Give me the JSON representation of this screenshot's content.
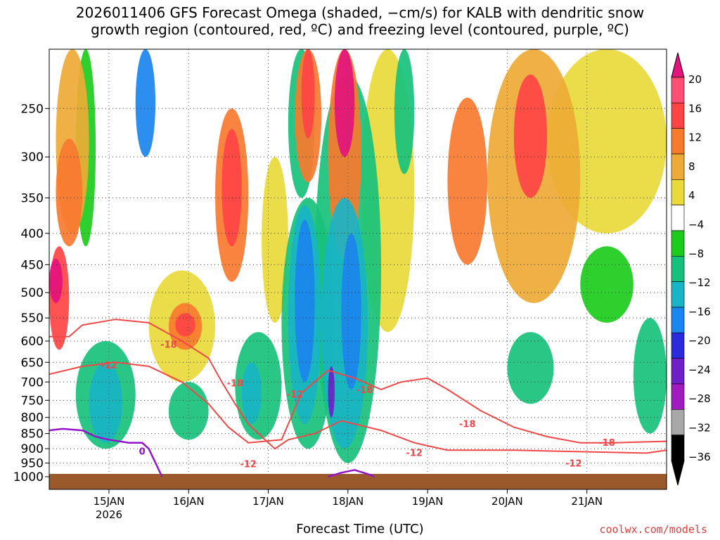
{
  "title_line1": "2026011406 GFS Forecast Omega (shaded, −cm/s) for KALB with dendritic snow",
  "title_line2": "growth region (contoured, red, ºC) and freezing level (contoured, purple, ºC)",
  "credit": "coolwx.com/models",
  "chart_data": {
    "type": "heatmap",
    "title": "2026011406 GFS Forecast Omega (shaded, −cm/s) for KALB with dendritic snow growth region (contoured, red, ºC) and freezing level (contoured, purple, ºC)",
    "xlabel": "Forecast Time (UTC)",
    "ylabel": "",
    "x_range_hours": [
      0,
      186
    ],
    "y_range_hPa": [
      1000,
      200
    ],
    "y_ticks": [
      250,
      300,
      350,
      400,
      450,
      500,
      550,
      600,
      650,
      700,
      750,
      800,
      850,
      900,
      950,
      1000
    ],
    "x_ticks": [
      {
        "hour": 18,
        "label": "15JAN",
        "sub": "2026"
      },
      {
        "hour": 42,
        "label": "16JAN",
        "sub": ""
      },
      {
        "hour": 66,
        "label": "17JAN",
        "sub": ""
      },
      {
        "hour": 90,
        "label": "18JAN",
        "sub": ""
      },
      {
        "hour": 114,
        "label": "19JAN",
        "sub": ""
      },
      {
        "hour": 138,
        "label": "20JAN",
        "sub": ""
      },
      {
        "hour": 162,
        "label": "21JAN",
        "sub": ""
      }
    ],
    "colorbar": {
      "labels": [
        "20",
        "16",
        "12",
        "8",
        "4",
        "−4",
        "−8",
        "−12",
        "−16",
        "−20",
        "−24",
        "−28",
        "−32",
        "−36"
      ],
      "colors": [
        "#ff4f73",
        "#ff4444",
        "#f77a2f",
        "#eeaa36",
        "#e9d93a",
        "#ffffff",
        "#1bcc1b",
        "#17c17c",
        "#19b4c6",
        "#1a86ee",
        "#2b2bdd",
        "#6e1fc7",
        "#a01bc0",
        "#a8a8a8",
        "#000000"
      ],
      "top_color": "#e3147e",
      "bottom_color": "#000000"
    },
    "omega_cells": [
      {
        "name": "early-low-warm",
        "t": [
          0,
          6
        ],
        "p": [
          420,
          620
        ],
        "v": 16
      },
      {
        "name": "early-core",
        "t": [
          0,
          4
        ],
        "p": [
          440,
          520
        ],
        "v": 20
      },
      {
        "name": "early-upper",
        "t": [
          2,
          12
        ],
        "p": [
          200,
          400
        ],
        "v": 8
      },
      {
        "name": "green-strip-a",
        "t": [
          8,
          14
        ],
        "p": [
          200,
          420
        ],
        "v": -6
      },
      {
        "name": "orange-15jan",
        "t": [
          2,
          10
        ],
        "p": [
          280,
          420
        ],
        "v": 12
      },
      {
        "name": "blue-15jan-upper",
        "t": [
          26,
          32
        ],
        "p": [
          200,
          300
        ],
        "v": -16
      },
      {
        "name": "cyan-15jan-low",
        "t": [
          12,
          22
        ],
        "p": [
          650,
          880
        ],
        "v": -12
      },
      {
        "name": "green-15jan-low",
        "t": [
          8,
          26
        ],
        "p": [
          600,
          900
        ],
        "v": -8
      },
      {
        "name": "orange-16jan",
        "t": [
          36,
          46
        ],
        "p": [
          520,
          620
        ],
        "v": 12
      },
      {
        "name": "red-16jan",
        "t": [
          38,
          44
        ],
        "p": [
          540,
          590
        ],
        "v": 18
      },
      {
        "name": "yellow-16jan",
        "t": [
          30,
          50
        ],
        "p": [
          460,
          700
        ],
        "v": 5
      },
      {
        "name": "green-16jan-low",
        "t": [
          36,
          48
        ],
        "p": [
          700,
          870
        ],
        "v": -8
      },
      {
        "name": "orange-16jan-upper",
        "t": [
          50,
          60
        ],
        "p": [
          250,
          480
        ],
        "v": 12
      },
      {
        "name": "red-16jan-upper",
        "t": [
          52,
          58
        ],
        "p": [
          270,
          420
        ],
        "v": 18
      },
      {
        "name": "green-16jan-mid",
        "t": [
          56,
          70
        ],
        "p": [
          580,
          870
        ],
        "v": -8
      },
      {
        "name": "cyan-16jan-mid",
        "t": [
          58,
          64
        ],
        "p": [
          650,
          820
        ],
        "v": -12
      },
      {
        "name": "yellow-17jan",
        "t": [
          64,
          72
        ],
        "p": [
          300,
          560
        ],
        "v": 5
      },
      {
        "name": "green-17jan-upper",
        "t": [
          72,
          80
        ],
        "p": [
          200,
          350
        ],
        "v": -8
      },
      {
        "name": "orange-17jan-upper",
        "t": [
          74,
          82
        ],
        "p": [
          200,
          330
        ],
        "v": 12
      },
      {
        "name": "red-17jan-upper",
        "t": [
          76,
          80
        ],
        "p": [
          200,
          280
        ],
        "v": 18
      },
      {
        "name": "blue-17jan-a",
        "t": [
          74,
          80
        ],
        "p": [
          380,
          700
        ],
        "v": -18
      },
      {
        "name": "cyan-17jan-a",
        "t": [
          72,
          82
        ],
        "p": [
          360,
          820
        ],
        "v": -12
      },
      {
        "name": "green-17jan-a",
        "t": [
          70,
          86
        ],
        "p": [
          350,
          900
        ],
        "v": -8
      },
      {
        "name": "magenta-17jan",
        "t": [
          86,
          92
        ],
        "p": [
          200,
          300
        ],
        "v": 20
      },
      {
        "name": "orange-17jan-b",
        "t": [
          84,
          94
        ],
        "p": [
          200,
          440
        ],
        "v": 12
      },
      {
        "name": "blue-18jan",
        "t": [
          88,
          94
        ],
        "p": [
          400,
          720
        ],
        "v": -18
      },
      {
        "name": "purple-18jan",
        "t": [
          84,
          86
        ],
        "p": [
          660,
          800
        ],
        "v": -26
      },
      {
        "name": "cyan-18jan",
        "t": [
          82,
          96
        ],
        "p": [
          350,
          900
        ],
        "v": -12
      },
      {
        "name": "green-18jan",
        "t": [
          80,
          100
        ],
        "p": [
          220,
          950
        ],
        "v": -8
      },
      {
        "name": "yellow-18jan",
        "t": [
          94,
          110
        ],
        "p": [
          200,
          580
        ],
        "v": 5
      },
      {
        "name": "green-19jan-upper",
        "t": [
          104,
          110
        ],
        "p": [
          200,
          320
        ],
        "v": -8
      },
      {
        "name": "orange-19jan",
        "t": [
          120,
          132
        ],
        "p": [
          240,
          450
        ],
        "v": 12
      },
      {
        "name": "red-20jan",
        "t": [
          140,
          150
        ],
        "p": [
          220,
          350
        ],
        "v": 16
      },
      {
        "name": "orange-20jan",
        "t": [
          132,
          160
        ],
        "p": [
          200,
          520
        ],
        "v": 10
      },
      {
        "name": "yellow-21jan",
        "t": [
          150,
          186
        ],
        "p": [
          200,
          400
        ],
        "v": 5
      },
      {
        "name": "green-21jan-low",
        "t": [
          176,
          186
        ],
        "p": [
          550,
          850
        ],
        "v": -8
      },
      {
        "name": "green-21jan-mid",
        "t": [
          160,
          176
        ],
        "p": [
          420,
          560
        ],
        "v": -6
      },
      {
        "name": "green-20jan-low",
        "t": [
          138,
          152
        ],
        "p": [
          580,
          760
        ],
        "v": -8
      }
    ],
    "dendritic_contours": [
      {
        "label": "-12",
        "points": [
          [
            0,
            590
          ],
          [
            6,
            590
          ],
          [
            10,
            565
          ],
          [
            20,
            553
          ],
          [
            30,
            560
          ],
          [
            40,
            600
          ],
          [
            48,
            640
          ],
          [
            52,
            700
          ],
          [
            56,
            760
          ],
          [
            60,
            820
          ],
          [
            64,
            860
          ],
          [
            68,
            900
          ],
          [
            72,
            870
          ],
          [
            80,
            850
          ],
          [
            88,
            810
          ],
          [
            92,
            820
          ],
          [
            100,
            840
          ],
          [
            110,
            880
          ],
          [
            120,
            905
          ],
          [
            140,
            905
          ],
          [
            160,
            910
          ],
          [
            180,
            915
          ],
          [
            186,
            905
          ]
        ]
      },
      {
        "label": "-18",
        "points": [
          [
            0,
            680
          ],
          [
            10,
            660
          ],
          [
            20,
            650
          ],
          [
            30,
            660
          ],
          [
            40,
            700
          ],
          [
            48,
            760
          ],
          [
            54,
            830
          ],
          [
            60,
            880
          ],
          [
            70,
            870
          ],
          [
            76,
            730
          ],
          [
            84,
            670
          ],
          [
            92,
            690
          ],
          [
            100,
            720
          ],
          [
            106,
            700
          ],
          [
            114,
            690
          ],
          [
            120,
            720
          ],
          [
            130,
            780
          ],
          [
            140,
            830
          ],
          [
            150,
            860
          ],
          [
            160,
            880
          ],
          [
            170,
            880
          ],
          [
            186,
            875
          ]
        ]
      }
    ],
    "freezing_contours": [
      {
        "label": "0",
        "points": [
          [
            0,
            840
          ],
          [
            4,
            835
          ],
          [
            10,
            840
          ],
          [
            14,
            860
          ],
          [
            18,
            870
          ],
          [
            24,
            880
          ],
          [
            28,
            880
          ],
          [
            30,
            900
          ],
          [
            34,
            1000
          ]
        ]
      },
      {
        "label": "0",
        "points": [
          [
            84,
            1000
          ],
          [
            88,
            985
          ],
          [
            92,
            975
          ],
          [
            96,
            990
          ],
          [
            98,
            1000
          ]
        ]
      }
    ],
    "contour_labels": [
      {
        "text": "-18",
        "t": 36,
        "p": 615
      },
      {
        "text": "-12",
        "t": 18,
        "p": 665
      },
      {
        "text": "-18",
        "t": 56,
        "p": 712
      },
      {
        "text": "-12",
        "t": 74,
        "p": 742
      },
      {
        "text": "-18",
        "t": 95,
        "p": 730
      },
      {
        "text": "-12",
        "t": 60,
        "p": 965
      },
      {
        "text": "-12",
        "t": 110,
        "p": 925
      },
      {
        "text": "-18",
        "t": 126,
        "p": 830
      },
      {
        "text": "-18",
        "t": 168,
        "p": 890
      },
      {
        "text": "-12",
        "t": 158,
        "p": 962
      },
      {
        "text": "0",
        "t": 28,
        "p": 920
      }
    ]
  }
}
